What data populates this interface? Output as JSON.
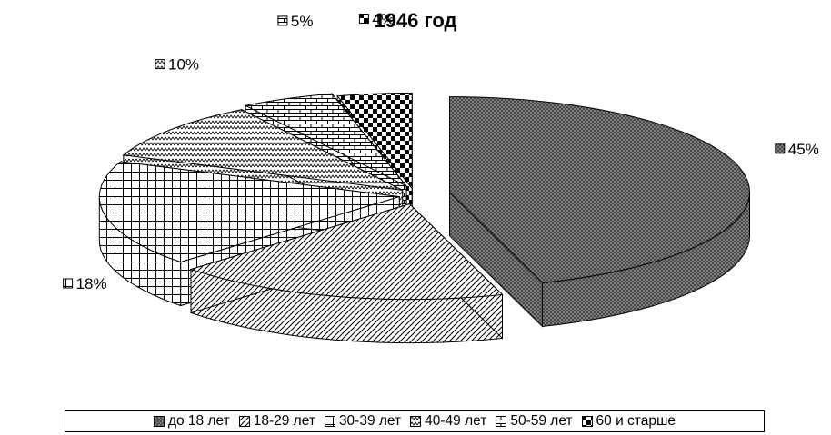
{
  "chart_data": {
    "type": "pie",
    "title": "1946 год",
    "categories": [
      "до 18 лет",
      "18-29 лет",
      "30-39 лет",
      "40-49 лет",
      "50-59 лет",
      "60 и старше"
    ],
    "values": [
      45,
      18,
      18,
      10,
      5,
      4
    ],
    "data_labels": [
      "45%",
      "18%",
      "18%",
      "10%",
      "5%",
      "4%"
    ],
    "three_d": true,
    "exploded": true,
    "legend_position": "bottom",
    "slice_fills": [
      "dense-crosshatch",
      "diagonal-lines",
      "grid",
      "zigzag-dots",
      "brick",
      "diamond-checker"
    ]
  }
}
